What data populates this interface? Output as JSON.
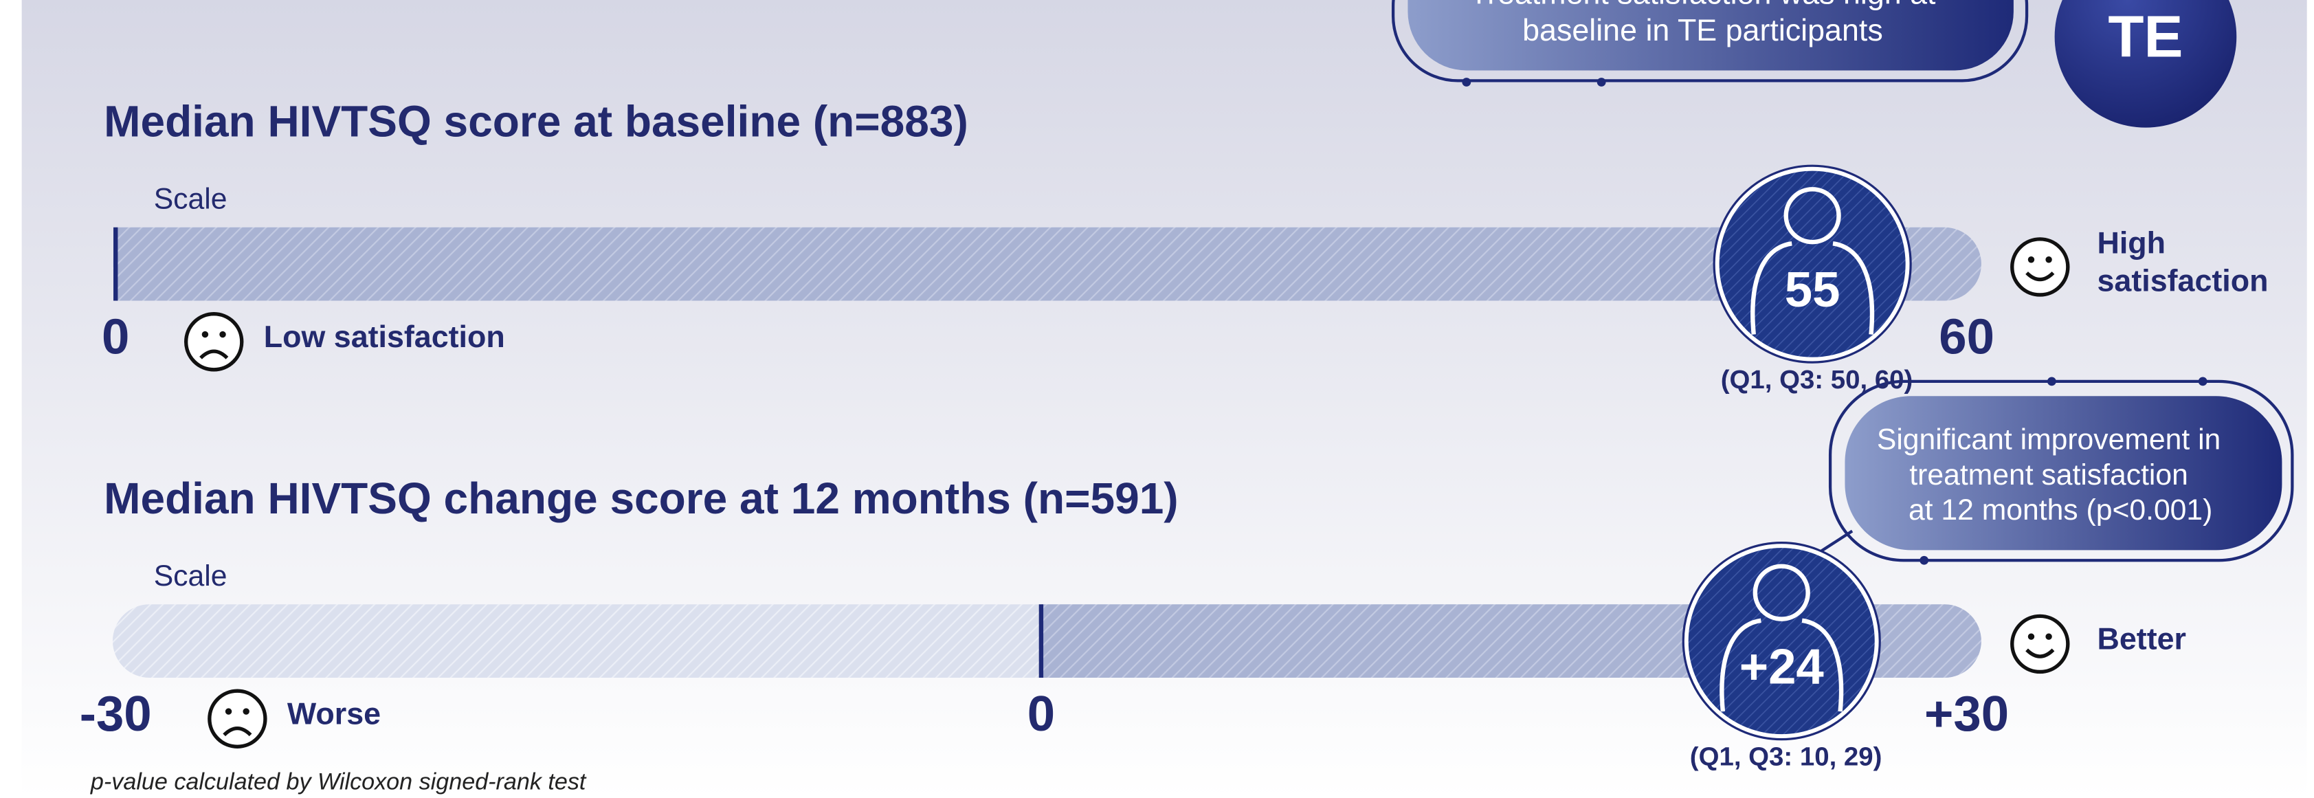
{
  "callout_top": {
    "lines": [
      "Treatment satisfaction was high at",
      "baseline in TE participants"
    ]
  },
  "badge": "TE",
  "panels": [
    {
      "title": "Median HIVTSQ score at baseline (n=883)",
      "scale_label": "Scale",
      "ticks": [
        {
          "value": 0,
          "label": "0"
        },
        {
          "value": 60,
          "label": "60"
        }
      ],
      "median": {
        "value": 55,
        "label": "55"
      },
      "iqr": "(Q1, Q3: 50, 60)",
      "low_label": "Low satisfaction",
      "high_label": [
        "High",
        "satisfaction"
      ]
    },
    {
      "title": "Median HIVTSQ change score at 12 months (n=591)",
      "scale_label": "Scale",
      "ticks": [
        {
          "value": -30,
          "label": "-30"
        },
        {
          "value": 0,
          "label": "0"
        },
        {
          "value": 30,
          "label": "+30"
        }
      ],
      "median": {
        "value": 24,
        "label": "+24"
      },
      "iqr": "(Q1, Q3: 10, 29)",
      "low_label": "Worse",
      "high_label": [
        "Better"
      ]
    }
  ],
  "callout_bottom": {
    "lines": [
      "Significant improvement in",
      "treatment satisfaction",
      "at 12 months (p<0.001)"
    ]
  },
  "footnote": "p-value calculated by Wilcoxon signed-rank test"
}
